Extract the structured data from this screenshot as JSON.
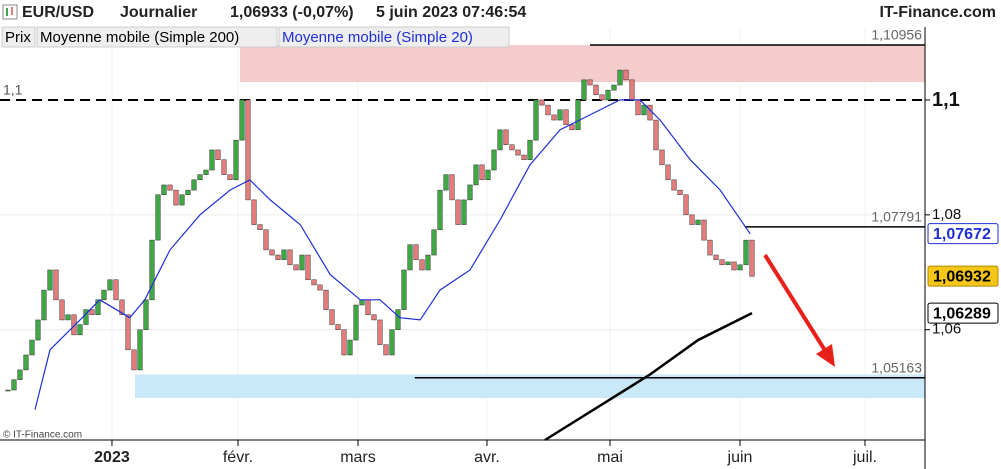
{
  "chart_data": {
    "type": "candlestick",
    "title": "EUR/USD",
    "period": "Journalier",
    "quote": "1,06933 (-0,07%)",
    "timestamp": "5 juin 2023 07:46:54",
    "source": "IT-Finance.com",
    "watermark": "© IT-Finance.com",
    "price_name": "Prix",
    "up_color": "#3fa743",
    "down_color": "#e47b7b",
    "close": [
      1.0495,
      1.0513,
      1.053,
      1.0556,
      1.0582,
      1.0617,
      1.0669,
      1.0704,
      1.0652,
      1.0617,
      1.0626,
      1.0591,
      1.0609,
      1.0635,
      1.0626,
      1.0652,
      1.0669,
      1.0687,
      1.0652,
      1.0626,
      1.0565,
      1.053,
      1.06,
      1.0652,
      1.0756,
      1.0835,
      1.0852,
      1.0843,
      1.0817,
      1.0835,
      1.0843,
      1.0861,
      1.087,
      1.0878,
      1.0913,
      1.0896,
      1.087,
      1.0861,
      1.093,
      1.1,
      1.0826,
      1.0783,
      1.0774,
      1.0739,
      1.073,
      1.0722,
      1.0739,
      1.0713,
      1.0704,
      1.073,
      1.0687,
      1.0678,
      1.0669,
      1.0635,
      1.0609,
      1.06,
      1.0556,
      1.0582,
      1.0643,
      1.0652,
      1.0626,
      1.0617,
      1.0574,
      1.0556,
      1.06,
      1.0635,
      1.0704,
      1.0748,
      1.0722,
      1.0704,
      1.073,
      1.0774,
      1.0843,
      1.087,
      1.0826,
      1.0783,
      1.0826,
      1.0852,
      1.0887,
      1.0861,
      1.0878,
      1.0913,
      1.0948,
      1.0922,
      1.0913,
      1.0904,
      1.0896,
      1.093,
      1.1,
      1.0991,
      1.0974,
      1.0965,
      1.0983,
      1.0957,
      1.0948,
      1.1,
      1.1035,
      1.1026,
      1.1009,
      1.1,
      1.1017,
      1.1026,
      1.1052,
      1.1035,
      1.1,
      1.0974,
      1.0991,
      1.0965,
      1.0913,
      1.0887,
      1.0861,
      1.0843,
      1.0835,
      1.08,
      1.0783,
      1.0791,
      1.0756,
      1.073,
      1.0722,
      1.0713,
      1.0718,
      1.0704,
      1.0713,
      1.0756,
      1.0693
    ],
    "series": [
      {
        "name": "Moyenne mobile (Simple 200)",
        "color": "#000000",
        "x": [
          89.5,
          107,
          115,
          124
        ],
        "values": [
          1.0408,
          1.0522,
          1.0582,
          1.0629
        ]
      },
      {
        "name": "Moyenne mobile (Simple 20)",
        "color": "#1f2fd6",
        "x": [
          4.5,
          7,
          12,
          15.3,
          20.3,
          22.8,
          27,
          32,
          37,
          40.3,
          43.7,
          48.7,
          53.7,
          58.7,
          62,
          65.3,
          68.7,
          72,
          77,
          82,
          87,
          92,
          97,
          102,
          105.3,
          108.7,
          113.7,
          118.7,
          123.7
        ],
        "values": [
          1.0461,
          1.0565,
          1.0617,
          1.0652,
          1.0621,
          1.0652,
          1.0739,
          1.08,
          1.0843,
          1.0861,
          1.0826,
          1.0783,
          1.0696,
          1.0652,
          1.0652,
          1.0621,
          1.0617,
          1.0669,
          1.0704,
          1.0791,
          1.0887,
          1.0948,
          1.0974,
          1.1,
          1.1,
          1.0965,
          1.0896,
          1.0843,
          1.0767
        ]
      }
    ],
    "xlim": [
      -1.33,
      152.83
    ],
    "xticks": [
      {
        "value": 17.33,
        "label": "2023"
      },
      {
        "value": 38.33,
        "label": "févr."
      },
      {
        "value": 58.33,
        "label": "mars"
      },
      {
        "value": 79.83,
        "label": "avr."
      },
      {
        "value": 100.33,
        "label": "mai"
      },
      {
        "value": 122,
        "label": "juin"
      },
      {
        "value": 142.83,
        "label": "juil."
      }
    ],
    "ylim": [
      1.0408,
      1.1127
    ],
    "yticks": [
      {
        "value": 1.1,
        "label": "1,1"
      },
      {
        "value": 1.08,
        "label": "1,08"
      },
      {
        "value": 1.06,
        "label": "1,06"
      }
    ],
    "price_labels": [
      {
        "value": 1.07672,
        "label": "1,07672",
        "background": "#ffffff",
        "border": "#1f2fd6",
        "text_color": "#1f2fd6"
      },
      {
        "value": 1.06932,
        "label": "1,06932",
        "background": "#f5c518",
        "border": "#b08a00",
        "text_color": "#000000"
      },
      {
        "value": 1.06289,
        "label": "1,06289",
        "background": "#ffffff",
        "border": "#000000",
        "text_color": "#000000"
      }
    ],
    "levels": [
      {
        "value": 1.10956,
        "label": "1,10956",
        "from": 97
      },
      {
        "value": 1.07791,
        "label": "1,07791",
        "from": 122.8
      },
      {
        "value": 1.05163,
        "label": "1,05163",
        "from": 67.8
      },
      {
        "value": 1.1,
        "label": "1,1",
        "from": -1.33,
        "dashed": true
      }
    ],
    "zones": [
      {
        "from": 38.67,
        "top": 1.10956,
        "bottom": 1.1031,
        "color": "#f4cccc"
      },
      {
        "from": 21.17,
        "top": 1.0522,
        "bottom": 1.0481,
        "color": "#c9e8f8"
      }
    ]
  }
}
